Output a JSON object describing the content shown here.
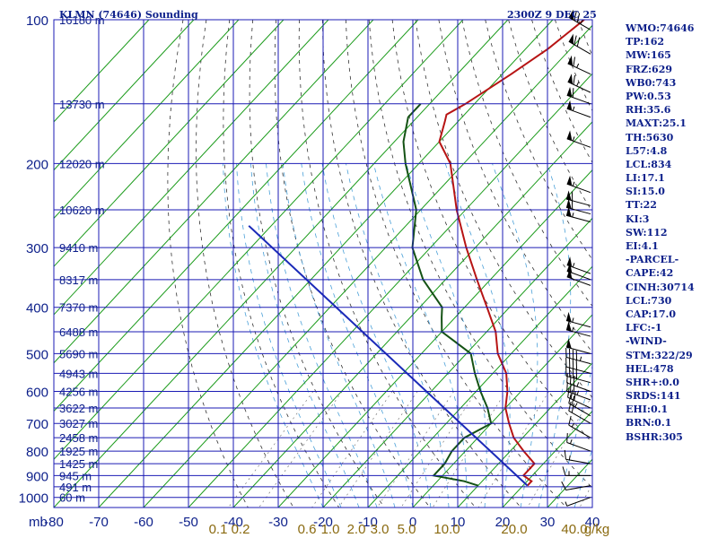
{
  "header": {
    "station_title": "KLMN (74646) Sounding",
    "time_label": "2300Z  9 DEC 25"
  },
  "stats": [
    "WMO:74646",
    "TP:162",
    "MW:165",
    "FRZ:629",
    "WB0:743",
    "PW:0.53",
    "RH:35.6",
    "MAXT:25.1",
    "TH:5630",
    "L57:4.8",
    "LCL:834",
    "LI:17.1",
    "SI:15.0",
    "TT:22",
    "KI:3",
    "SW:112",
    "EI:4.1",
    "-PARCEL-",
    "CAPE:42",
    "CINH:30714",
    "LCL:730",
    "CAP:17.0",
    "LFC:-1",
    "-WIND-",
    "STM:322/29",
    "HEL:478",
    "SHR+:0.0",
    "SRDS:141",
    "EHI:0.1",
    "BRN:0.1",
    "BSHR:305"
  ],
  "colors": {
    "axis": "#0c1f8a",
    "isobar": "#1b1bb4",
    "isotherm": "#1a9a1a",
    "temperature": "#b71414",
    "dewpoint": "#145214",
    "parcel": "#1a2ab8",
    "dry_adiabat": "#333333",
    "moist_adiabat": "#4aa0d8",
    "mixing_label": "#8a6a10",
    "barb": "#000000"
  },
  "chart_data": {
    "type": "skew-t",
    "ylabel": "mb",
    "pressure_ticks": [
      100,
      200,
      300,
      400,
      500,
      600,
      700,
      800,
      900,
      1000
    ],
    "temperature_ticks": [
      -80,
      -70,
      -60,
      -50,
      -40,
      -30,
      -20,
      -10,
      0,
      10,
      20,
      30,
      40
    ],
    "isobars_mb": [
      100,
      150,
      200,
      250,
      300,
      350,
      400,
      450,
      500,
      550,
      600,
      650,
      700,
      750,
      800,
      850,
      900,
      950,
      1000
    ],
    "height_labels": [
      {
        "p": 100,
        "label": "16180 m"
      },
      {
        "p": 150,
        "label": "13730 m"
      },
      {
        "p": 200,
        "label": "12020 m"
      },
      {
        "p": 250,
        "label": "10620 m"
      },
      {
        "p": 300,
        "label": "9410 m"
      },
      {
        "p": 350,
        "label": "8317 m"
      },
      {
        "p": 400,
        "label": "7370 m"
      },
      {
        "p": 450,
        "label": "6488 m"
      },
      {
        "p": 500,
        "label": "5690 m"
      },
      {
        "p": 550,
        "label": "4943 m"
      },
      {
        "p": 600,
        "label": "4256 m"
      },
      {
        "p": 650,
        "label": "3622 m"
      },
      {
        "p": 700,
        "label": "3027 m"
      },
      {
        "p": 750,
        "label": "2458 m"
      },
      {
        "p": 800,
        "label": "1925 m"
      },
      {
        "p": 850,
        "label": "1425 m"
      },
      {
        "p": 900,
        "label": "945 m"
      },
      {
        "p": 950,
        "label": "491 m"
      },
      {
        "p": 1000,
        "label": "60 m"
      }
    ],
    "mixing_ratio_labels": [
      "0.1",
      "0.2",
      "0.6",
      "1.0",
      "2.0",
      "3.0",
      "5.0",
      "10.0",
      "20.0",
      "40.0",
      "g/kg"
    ],
    "mixing_ratio_values": [
      0.1,
      0.2,
      0.6,
      1.0,
      2.0,
      3.0,
      5.0,
      10.0,
      20.0,
      40.0
    ],
    "series": [
      {
        "name": "Temperature",
        "points": [
          [
            100,
            -63
          ],
          [
            115,
            -65
          ],
          [
            130,
            -68
          ],
          [
            150,
            -72
          ],
          [
            158,
            -74
          ],
          [
            163,
            -73
          ],
          [
            180,
            -70
          ],
          [
            200,
            -63
          ],
          [
            250,
            -52
          ],
          [
            300,
            -42
          ],
          [
            350,
            -33
          ],
          [
            400,
            -25
          ],
          [
            450,
            -18
          ],
          [
            500,
            -13
          ],
          [
            550,
            -7
          ],
          [
            600,
            -3
          ],
          [
            650,
            0
          ],
          [
            700,
            4
          ],
          [
            750,
            8
          ],
          [
            800,
            13
          ],
          [
            850,
            18
          ],
          [
            900,
            18
          ],
          [
            925,
            21
          ],
          [
            945,
            21
          ]
        ]
      },
      {
        "name": "Dewpoint",
        "points": [
          [
            150,
            -82
          ],
          [
            160,
            -82
          ],
          [
            180,
            -78
          ],
          [
            200,
            -73
          ],
          [
            250,
            -61
          ],
          [
            300,
            -54
          ],
          [
            350,
            -45
          ],
          [
            400,
            -35
          ],
          [
            420,
            -33
          ],
          [
            450,
            -30
          ],
          [
            500,
            -19
          ],
          [
            550,
            -14
          ],
          [
            600,
            -9
          ],
          [
            650,
            -4
          ],
          [
            700,
            0
          ],
          [
            750,
            -3
          ],
          [
            800,
            -3
          ],
          [
            850,
            -2
          ],
          [
            900,
            -2
          ],
          [
            925,
            6
          ],
          [
            945,
            10
          ]
        ]
      },
      {
        "name": "Parcel",
        "points": [
          [
            270,
            -95
          ],
          [
            945,
            21
          ]
        ]
      }
    ],
    "wind_barbs": [
      {
        "p": 105,
        "dir": 300,
        "spd": 75
      },
      {
        "p": 118,
        "dir": 300,
        "spd": 70
      },
      {
        "p": 130,
        "dir": 295,
        "spd": 65
      },
      {
        "p": 142,
        "dir": 295,
        "spd": 65
      },
      {
        "p": 150,
        "dir": 290,
        "spd": 60
      },
      {
        "p": 160,
        "dir": 290,
        "spd": 55
      },
      {
        "p": 185,
        "dir": 290,
        "spd": 55
      },
      {
        "p": 230,
        "dir": 290,
        "spd": 55
      },
      {
        "p": 245,
        "dir": 285,
        "spd": 60
      },
      {
        "p": 255,
        "dir": 285,
        "spd": 60
      },
      {
        "p": 265,
        "dir": 285,
        "spd": 55
      },
      {
        "p": 340,
        "dir": 290,
        "spd": 55
      },
      {
        "p": 350,
        "dir": 290,
        "spd": 50
      },
      {
        "p": 360,
        "dir": 290,
        "spd": 50
      },
      {
        "p": 440,
        "dir": 285,
        "spd": 55
      },
      {
        "p": 460,
        "dir": 285,
        "spd": 55
      },
      {
        "p": 500,
        "dir": 285,
        "spd": 50
      },
      {
        "p": 525,
        "dir": 285,
        "spd": 45
      },
      {
        "p": 550,
        "dir": 285,
        "spd": 40
      },
      {
        "p": 575,
        "dir": 285,
        "spd": 40
      },
      {
        "p": 600,
        "dir": 290,
        "spd": 35
      },
      {
        "p": 625,
        "dir": 290,
        "spd": 35
      },
      {
        "p": 650,
        "dir": 295,
        "spd": 30
      },
      {
        "p": 675,
        "dir": 300,
        "spd": 25
      },
      {
        "p": 700,
        "dir": 300,
        "spd": 20
      },
      {
        "p": 750,
        "dir": 300,
        "spd": 15
      },
      {
        "p": 800,
        "dir": 290,
        "spd": 15
      },
      {
        "p": 850,
        "dir": 280,
        "spd": 15
      },
      {
        "p": 900,
        "dir": 270,
        "spd": 15
      },
      {
        "p": 945,
        "dir": 260,
        "spd": 10
      },
      {
        "p": 1000,
        "dir": 250,
        "spd": 5
      }
    ]
  }
}
